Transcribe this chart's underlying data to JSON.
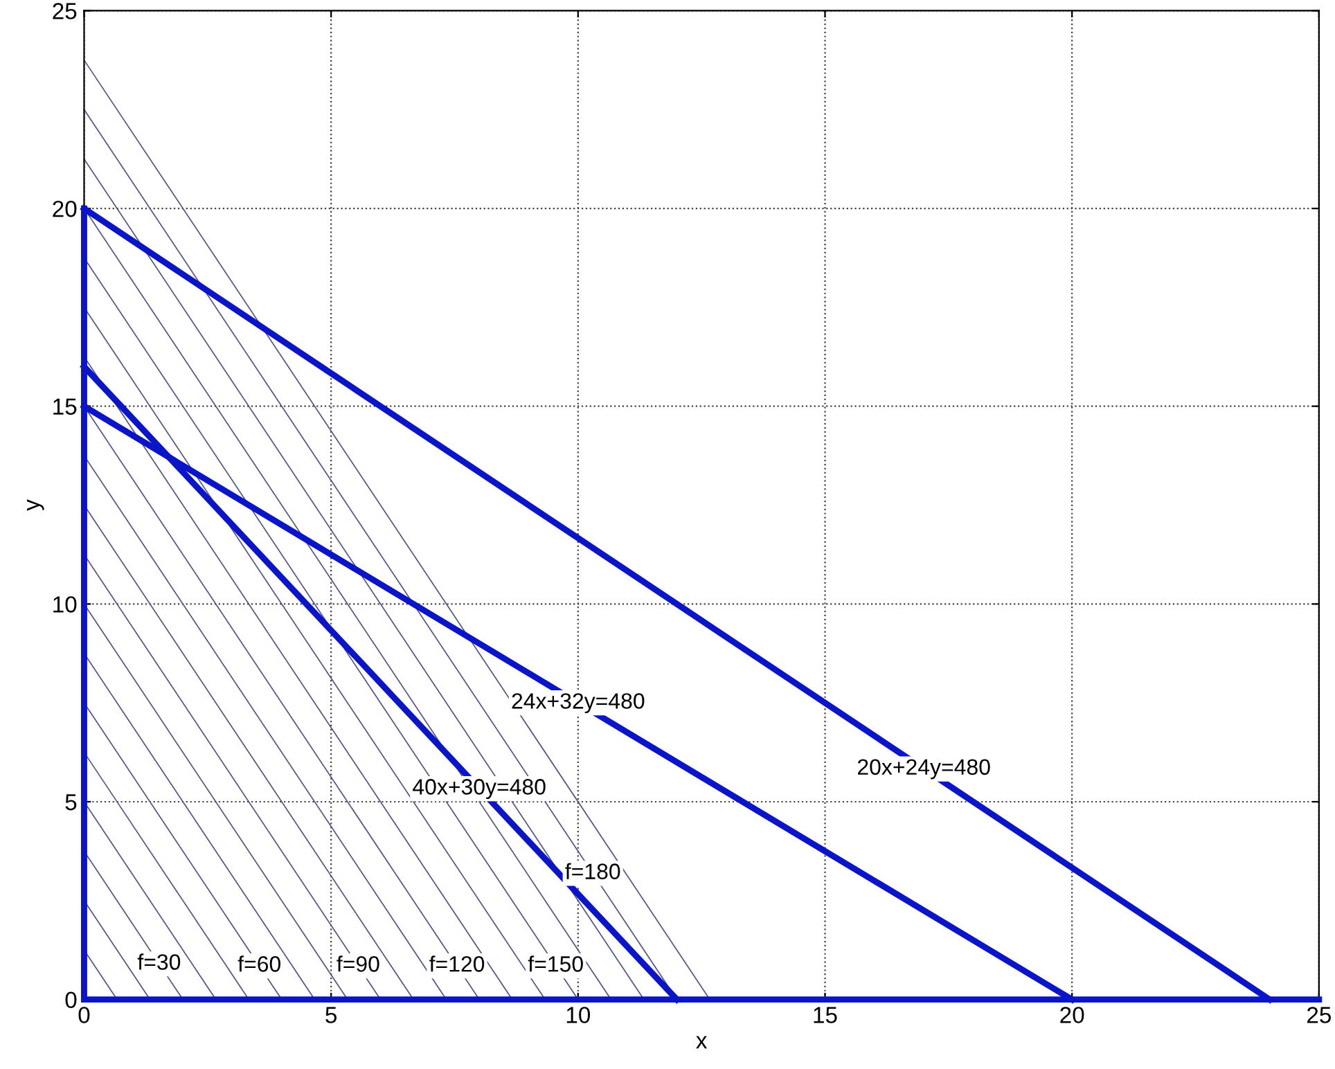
{
  "chart_data": {
    "type": "line",
    "xlabel": "x",
    "ylabel": "y",
    "xlim": [
      0,
      25
    ],
    "ylim": [
      0,
      25
    ],
    "xticks": [
      0,
      5,
      10,
      15,
      20,
      25
    ],
    "yticks": [
      0,
      5,
      10,
      15,
      20,
      25
    ],
    "grid": true,
    "line_style": "solid",
    "marker": "none",
    "color": "#0a14c8",
    "series": [
      {
        "color": "#50508c",
        "x": [
          0,
          0.667
        ],
        "values": [
          1.25,
          0
        ]
      },
      {
        "color": "#50508c",
        "x": [
          0,
          1.333
        ],
        "values": [
          2.5,
          0
        ]
      },
      {
        "color": "#50508c",
        "x": [
          0,
          2
        ],
        "values": [
          3.75,
          0
        ]
      },
      {
        "color": "#50508c",
        "x": [
          0,
          2.667
        ],
        "values": [
          5,
          0
        ]
      },
      {
        "color": "#50508c",
        "x": [
          0,
          3.333
        ],
        "values": [
          6.25,
          0
        ]
      },
      {
        "color": "#50508c",
        "x": [
          0,
          4
        ],
        "values": [
          7.5,
          0
        ]
      },
      {
        "color": "#50508c",
        "x": [
          0,
          4.667
        ],
        "values": [
          8.75,
          0
        ]
      },
      {
        "color": "#50508c",
        "x": [
          0,
          5.333
        ],
        "values": [
          10,
          0
        ]
      },
      {
        "color": "#50508c",
        "x": [
          0,
          6
        ],
        "values": [
          11.25,
          0
        ]
      },
      {
        "color": "#50508c",
        "x": [
          0,
          6.667
        ],
        "values": [
          12.5,
          0
        ]
      },
      {
        "color": "#50508c",
        "x": [
          0,
          7.333
        ],
        "values": [
          13.75,
          0
        ]
      },
      {
        "color": "#50508c",
        "x": [
          0,
          8
        ],
        "values": [
          15,
          0
        ]
      },
      {
        "color": "#50508c",
        "x": [
          0,
          8.667
        ],
        "values": [
          16.25,
          0
        ]
      },
      {
        "color": "#50508c",
        "x": [
          0,
          9.333
        ],
        "values": [
          17.5,
          0
        ]
      },
      {
        "color": "#50508c",
        "x": [
          0,
          10
        ],
        "values": [
          18.75,
          0
        ]
      },
      {
        "color": "#50508c",
        "x": [
          0,
          10.667
        ],
        "values": [
          20,
          0
        ]
      },
      {
        "color": "#50508c",
        "x": [
          0,
          11.333
        ],
        "values": [
          21.25,
          0
        ]
      },
      {
        "color": "#50508c",
        "x": [
          0,
          12
        ],
        "values": [
          22.5,
          0
        ]
      },
      {
        "color": "#50508c",
        "x": [
          0,
          12.667
        ],
        "values": [
          23.75,
          0
        ]
      },
      {
        "x": [
          0,
          24
        ],
        "values": [
          20,
          0
        ]
      },
      {
        "x": [
          0,
          20
        ],
        "values": [
          15,
          0
        ]
      },
      {
        "x": [
          0,
          12
        ],
        "values": [
          16,
          0
        ]
      },
      {
        "x": [
          0,
          0
        ],
        "values": [
          0,
          20
        ]
      },
      {
        "x": [
          0,
          25
        ],
        "values": [
          0,
          0
        ]
      }
    ],
    "annotations": [
      {
        "text": "20x+24y=480",
        "x": 17,
        "y": 5.83
      },
      {
        "text": "24x+32y=480",
        "x": 10,
        "y": 7.5
      },
      {
        "text": "40x+30y=480",
        "x": 8,
        "y": 5.33
      },
      {
        "text": "f=180",
        "x": 10.3,
        "y": 3.19
      },
      {
        "text": "f=30",
        "x": 1.52,
        "y": 0.9
      },
      {
        "text": "f=60",
        "x": 3.55,
        "y": 0.85
      },
      {
        "text": "f=90",
        "x": 5.55,
        "y": 0.85
      },
      {
        "text": "f=120",
        "x": 7.55,
        "y": 0.85
      },
      {
        "text": "f=150",
        "x": 9.55,
        "y": 0.85
      }
    ]
  }
}
